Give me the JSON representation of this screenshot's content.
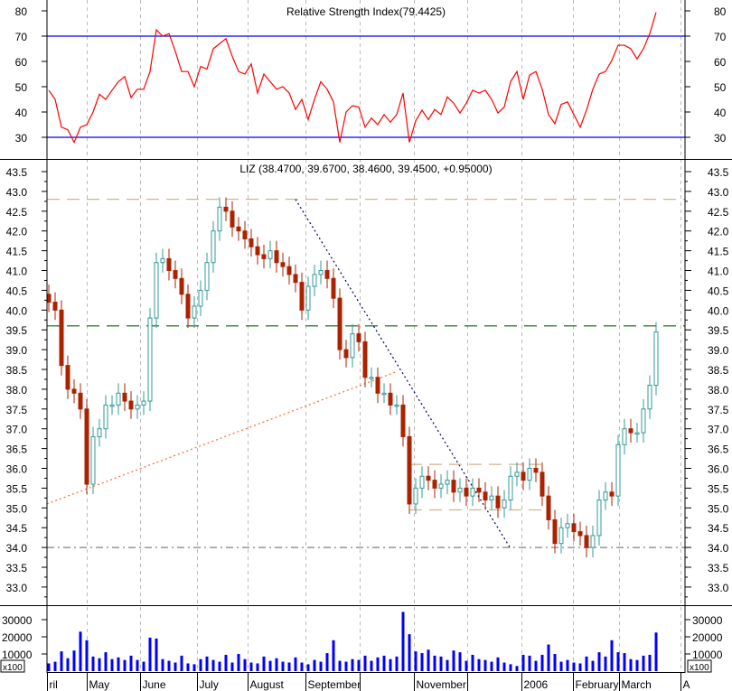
{
  "rsi_panel": {
    "title": "Relative Strength Index(79.4425)"
  },
  "price_panel": {
    "title": "LIZ (38.4700, 39.6700, 38.4600, 39.4500, +0.95000)"
  },
  "volume_panel": {
    "unit": "x100"
  },
  "colors": {
    "up": "#339999",
    "down": "#aa2200",
    "rsi_line": "#ff0000",
    "rsi_bands": "#0000ff",
    "volume": "#0000ff",
    "resistance_top": "#d2b48c",
    "resistance_mid": "#006400",
    "support": "#808080",
    "uptrend": "#ff6633",
    "downtrend": "#000066"
  },
  "x_axis": {
    "ticks": [
      {
        "index": -0.3,
        "label": "ril"
      },
      {
        "index": 6,
        "label": "May"
      },
      {
        "index": 14.4,
        "label": "June"
      },
      {
        "index": 23.4,
        "label": "July"
      },
      {
        "index": 31.4,
        "label": "August"
      },
      {
        "index": 40.6,
        "label": "September"
      },
      {
        "index": 49.1,
        "label": ""
      },
      {
        "index": 57.7,
        "label": "November"
      },
      {
        "index": 66.1,
        "label": ""
      },
      {
        "index": 74.7,
        "label": "2006"
      },
      {
        "index": 82.9,
        "label": "February"
      },
      {
        "index": 90.1,
        "label": "March"
      },
      {
        "index": 99.9,
        "label": "A"
      }
    ]
  },
  "chart_data": [
    {
      "type": "line",
      "title": "Relative Strength Index(79.4425)",
      "ylim": [
        25,
        85
      ],
      "yticks": [
        80,
        70,
        60,
        50,
        40,
        30
      ],
      "bands": [
        70,
        30
      ],
      "grid": "vertical dashed",
      "values": [
        48.6,
        45,
        34,
        33,
        28,
        34,
        35,
        40,
        47,
        45,
        48.6,
        52,
        54,
        45.7,
        49,
        49,
        56,
        72.5,
        70,
        71,
        64,
        56,
        56,
        50,
        58,
        57,
        65,
        67,
        69,
        62,
        56,
        55,
        59,
        47.5,
        55,
        52,
        49,
        50,
        47.5,
        41,
        45,
        37,
        45,
        52,
        49,
        44,
        28,
        40,
        42.5,
        42,
        34,
        37.6,
        35,
        39,
        36,
        39,
        47.5,
        28,
        36.5,
        40.7,
        37,
        41,
        39,
        46,
        43.5,
        39.6,
        43.5,
        48.6,
        47.5,
        48.6,
        45,
        39.6,
        42,
        52,
        56,
        45,
        54.6,
        56,
        49,
        39,
        35.4,
        43,
        44,
        39,
        34,
        40.7,
        49,
        55,
        56,
        60.4,
        66.4,
        66.4,
        65,
        61,
        65,
        71,
        79.4
      ]
    },
    {
      "type": "candlestick",
      "title": "LIZ (38.4700, 39.6700, 38.4600, 39.4500, +0.95000)",
      "ylim": [
        32.7,
        43.8
      ],
      "yticks": [
        43.5,
        43.0,
        42.5,
        42.0,
        41.5,
        41.0,
        40.5,
        40.0,
        39.5,
        39.0,
        38.5,
        38.0,
        37.5,
        37.0,
        36.5,
        36.0,
        35.5,
        35.0,
        34.5,
        34.0,
        33.5,
        33.0
      ],
      "last_bar": {
        "open": 38.47,
        "high": 39.67,
        "low": 38.46,
        "close": 39.45,
        "change": 0.95
      },
      "close": [
        40.2,
        40.0,
        38.6,
        38.0,
        37.9,
        37.5,
        35.6,
        36.8,
        37.0,
        37.6,
        37.6,
        37.9,
        37.7,
        37.5,
        37.6,
        37.7,
        39.8,
        41.2,
        41.3,
        41.0,
        40.8,
        40.4,
        39.8,
        40.1,
        40.5,
        41.2,
        42.0,
        42.6,
        42.5,
        42.1,
        42.0,
        41.8,
        41.6,
        41.4,
        41.3,
        41.5,
        41.2,
        41.1,
        40.9,
        40.7,
        40.0,
        40.6,
        40.9,
        41.0,
        40.8,
        40.3,
        39.0,
        38.8,
        39.4,
        39.2,
        38.3,
        38.3,
        37.9,
        37.9,
        37.6,
        37.6,
        36.8,
        35.1,
        35.5,
        35.8,
        35.7,
        35.5,
        35.6,
        35.7,
        35.4,
        35.5,
        35.3,
        35.5,
        35.4,
        35.2,
        35.3,
        35.0,
        35.2,
        35.8,
        35.9,
        35.7,
        36.0,
        35.9,
        35.3,
        34.7,
        34.1,
        34.5,
        34.6,
        34.4,
        34.3,
        34.0,
        34.3,
        35.2,
        35.4,
        35.3,
        36.6,
        37.0,
        36.9,
        36.9,
        37.5,
        38.1,
        39.45
      ],
      "horizontal_lines": [
        {
          "value": 42.8,
          "style": "dashed",
          "color": "#d2b48c"
        },
        {
          "value": 39.6,
          "style": "dashed",
          "color": "#006400"
        },
        {
          "value": 34.0,
          "style": "dash-dot",
          "color": "#808080"
        }
      ],
      "segments": [
        {
          "from": [
            -0.3,
            35.1
          ],
          "to": [
            55.1,
            38.45
          ],
          "style": "dotted",
          "color": "#ff6633"
        },
        {
          "from": [
            39,
            42.8
          ],
          "to": [
            72.9,
            34.0
          ],
          "style": "dotted",
          "color": "#000066"
        },
        {
          "from": [
            57,
            36.1
          ],
          "to": [
            78.7,
            36.1
          ],
          "style": "dashed",
          "color": "#d2b48c"
        },
        {
          "from": [
            57,
            34.95
          ],
          "to": [
            78.7,
            34.95
          ],
          "style": "dashed",
          "color": "#d2b48c"
        }
      ]
    },
    {
      "type": "bar",
      "title": "",
      "unit": "x100",
      "ylim": [
        0,
        36000
      ],
      "yticks": [
        30000,
        20000,
        10000
      ],
      "values": [
        4500,
        5500,
        11500,
        7500,
        12000,
        23000,
        18000,
        8500,
        7500,
        11000,
        7000,
        8000,
        6500,
        9000,
        6500,
        5500,
        19500,
        19000,
        7000,
        6000,
        5000,
        9000,
        4500,
        4000,
        7000,
        8500,
        6500,
        5500,
        9500,
        5000,
        10000,
        7000,
        5000,
        4500,
        8500,
        6000,
        7500,
        5500,
        5000,
        8000,
        5000,
        4000,
        6500,
        5500,
        10500,
        18000,
        6000,
        5500,
        7000,
        6500,
        9000,
        6000,
        8000,
        9000,
        7000,
        8500,
        34500,
        21500,
        11500,
        10500,
        12500,
        9000,
        8500,
        6500,
        12000,
        11000,
        6000,
        9500,
        7000,
        6500,
        5500,
        8000,
        5000,
        4000,
        3000,
        9500,
        9000,
        6000,
        9500,
        15500,
        10000,
        5500,
        6500,
        5000,
        4500,
        8500,
        6000,
        11000,
        8500,
        18000,
        11000,
        10500,
        7000,
        6500,
        9000,
        9500,
        22500
      ]
    }
  ]
}
